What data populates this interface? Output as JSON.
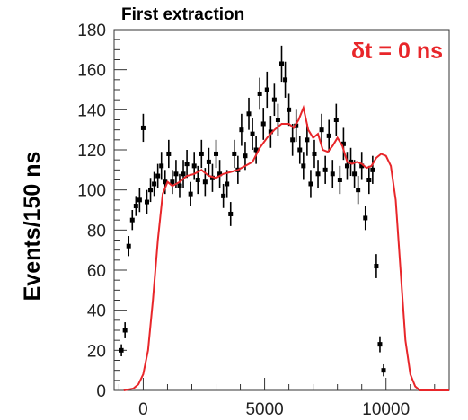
{
  "chart_data": {
    "type": "scatter",
    "title": "First extraction",
    "xlabel": "",
    "ylabel": "Events/150 ns",
    "annotation": "δt = 0 ns",
    "xlim": [
      -1200,
      12600
    ],
    "ylim": [
      0,
      180
    ],
    "x_ticks": [
      0,
      5000,
      10000
    ],
    "y_ticks": [
      0,
      20,
      40,
      60,
      80,
      100,
      120,
      140,
      160,
      180
    ],
    "grid": false,
    "colors": {
      "data": "#000000",
      "model": "#e8262a"
    },
    "series": [
      {
        "type": "errorbar",
        "points": [
          [
            -900,
            20,
            3
          ],
          [
            -750,
            30,
            4
          ],
          [
            -600,
            72,
            5
          ],
          [
            -450,
            85,
            5
          ],
          [
            -300,
            92,
            5
          ],
          [
            -150,
            95,
            6
          ],
          [
            0,
            131,
            7
          ],
          [
            150,
            94,
            6
          ],
          [
            300,
            100,
            6
          ],
          [
            450,
            103,
            6
          ],
          [
            600,
            107,
            6
          ],
          [
            750,
            112,
            7
          ],
          [
            900,
            104,
            6
          ],
          [
            1050,
            118,
            7
          ],
          [
            1200,
            104,
            6
          ],
          [
            1350,
            108,
            7
          ],
          [
            1500,
            102,
            6
          ],
          [
            1650,
            108,
            7
          ],
          [
            1800,
            113,
            7
          ],
          [
            1950,
            98,
            6
          ],
          [
            2100,
            112,
            7
          ],
          [
            2250,
            105,
            7
          ],
          [
            2400,
            118,
            7
          ],
          [
            2550,
            104,
            7
          ],
          [
            2700,
            114,
            7
          ],
          [
            2850,
            106,
            7
          ],
          [
            3000,
            118,
            7
          ],
          [
            3150,
            108,
            7
          ],
          [
            3300,
            97,
            6
          ],
          [
            3450,
            103,
            7
          ],
          [
            3600,
            88,
            6
          ],
          [
            3750,
            118,
            7
          ],
          [
            3900,
            110,
            7
          ],
          [
            4050,
            130,
            8
          ],
          [
            4200,
            117,
            7
          ],
          [
            4350,
            138,
            8
          ],
          [
            4500,
            128,
            8
          ],
          [
            4650,
            120,
            7
          ],
          [
            4800,
            148,
            8
          ],
          [
            4950,
            133,
            8
          ],
          [
            5100,
            150,
            9
          ],
          [
            5250,
            129,
            8
          ],
          [
            5400,
            145,
            8
          ],
          [
            5550,
            135,
            8
          ],
          [
            5700,
            163,
            9
          ],
          [
            5850,
            155,
            9
          ],
          [
            6000,
            140,
            8
          ],
          [
            6150,
            125,
            8
          ],
          [
            6300,
            132,
            8
          ],
          [
            6450,
            120,
            7
          ],
          [
            6600,
            112,
            7
          ],
          [
            6750,
            125,
            8
          ],
          [
            6900,
            103,
            7
          ],
          [
            7050,
            118,
            7
          ],
          [
            7200,
            108,
            7
          ],
          [
            7350,
            130,
            8
          ],
          [
            7500,
            110,
            7
          ],
          [
            7650,
            127,
            8
          ],
          [
            7800,
            108,
            7
          ],
          [
            7950,
            135,
            8
          ],
          [
            8100,
            105,
            7
          ],
          [
            8250,
            123,
            8
          ],
          [
            8400,
            112,
            7
          ],
          [
            8550,
            114,
            7
          ],
          [
            8700,
            108,
            7
          ],
          [
            8850,
            100,
            7
          ],
          [
            9000,
            112,
            7
          ],
          [
            9150,
            86,
            6
          ],
          [
            9300,
            105,
            7
          ],
          [
            9450,
            110,
            7
          ],
          [
            9600,
            62,
            6
          ],
          [
            9750,
            23,
            4
          ],
          [
            9900,
            10,
            3
          ]
        ]
      },
      {
        "type": "line",
        "x": [
          -800,
          -400,
          -200,
          0,
          200,
          400,
          600,
          800,
          1000,
          1200,
          1500,
          1800,
          2100,
          2400,
          2700,
          3000,
          3300,
          3600,
          3900,
          4200,
          4500,
          4800,
          5100,
          5400,
          5700,
          6000,
          6200,
          6400,
          6600,
          6800,
          7000,
          7200,
          7400,
          7600,
          7800,
          8000,
          8200,
          8400,
          8600,
          8800,
          9000,
          9200,
          9400,
          9600,
          9800,
          10000,
          10200,
          10400,
          10600,
          10800,
          11000,
          11200,
          11400,
          12600
        ],
        "y": [
          0,
          1,
          3,
          8,
          20,
          45,
          75,
          98,
          104,
          102,
          104,
          107,
          108,
          110,
          107,
          106,
          108,
          109,
          110,
          112,
          114,
          121,
          126,
          130,
          133,
          133,
          131,
          135,
          141,
          130,
          126,
          128,
          120,
          119,
          122,
          126,
          122,
          114,
          113,
          114,
          113,
          111,
          112,
          116,
          118,
          117,
          112,
          95,
          60,
          25,
          8,
          2,
          0,
          0
        ]
      }
    ]
  }
}
